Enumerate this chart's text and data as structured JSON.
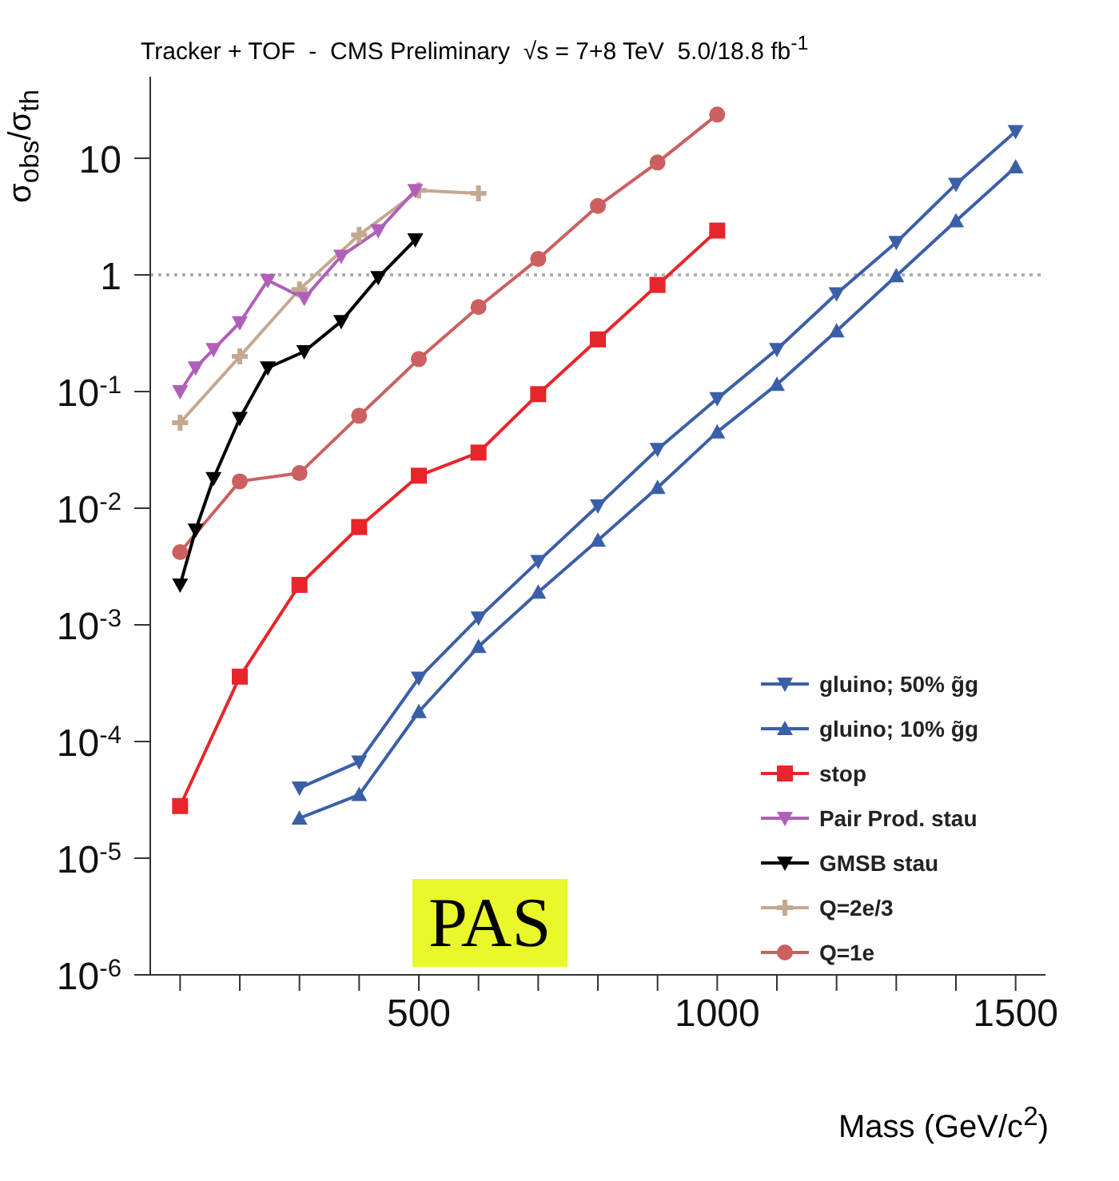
{
  "chart_data": {
    "type": "line",
    "title": "Tracker + TOF  -  CMS Preliminary  √s = 7+8 TeV  5.0/18.8 fb$^{-1}$",
    "xlabel": "Mass (GeV/c$^{2}$)",
    "ylabel": "σ$_{obs}$/σ$_{th}$",
    "annotations": [
      "PAS"
    ],
    "log": "y",
    "xlim": [
      50,
      1550
    ],
    "xticks": [
      {
        "value": 100,
        "label": null
      },
      {
        "value": 200,
        "label": null
      },
      {
        "value": 300,
        "label": null
      },
      {
        "value": 400,
        "label": null
      },
      500,
      {
        "value": 600,
        "label": null
      },
      {
        "value": 700,
        "label": null
      },
      {
        "value": 800,
        "label": null
      },
      {
        "value": 900,
        "label": null
      },
      1000,
      {
        "value": 1100,
        "label": null
      },
      {
        "value": 1200,
        "label": null
      },
      {
        "value": 1300,
        "label": null
      },
      {
        "value": 1400,
        "label": null
      },
      1500
    ],
    "ylim": [
      1e-06,
      50
    ],
    "yticks": [
      {
        "value": 1e-06,
        "label": "10$^{-6}$"
      },
      {
        "value": 1e-05,
        "label": "10$^{-5}$"
      },
      {
        "value": 0.0001,
        "label": "10$^{-4}$"
      },
      {
        "value": 0.001,
        "label": "10$^{-3}$"
      },
      {
        "value": 0.01,
        "label": "10$^{-2}$"
      },
      {
        "value": 0.1,
        "label": "10$^{-1}$"
      },
      1,
      10
    ],
    "legend": "bottom right",
    "line_style": "solid",
    "ref_lines": [
      {
        "axis": "y",
        "value": 1,
        "color": "#b0b0b0",
        "line_style": "dotted"
      }
    ],
    "series": [
      {
        "name": "gluino; 50% g̃g",
        "color": "#3a5fa8",
        "marker": "triangle-down",
        "x": [
          300,
          400,
          500,
          600,
          700,
          800,
          900,
          1000,
          1100,
          1200,
          1300,
          1400,
          1500
        ],
        "values": [
          4e-05,
          6.7e-05,
          0.00035,
          0.00115,
          0.0035,
          0.0105,
          0.032,
          0.087,
          0.23,
          0.69,
          1.9,
          6,
          17
        ]
      },
      {
        "name": "gluino; 10% g̃g",
        "color": "#3a5fa8",
        "marker": "triangle",
        "x": [
          300,
          400,
          500,
          600,
          700,
          800,
          900,
          1000,
          1100,
          1200,
          1300,
          1400,
          1500
        ],
        "values": [
          2.2e-05,
          3.5e-05,
          0.00018,
          0.00065,
          0.0019,
          0.0053,
          0.015,
          0.045,
          0.115,
          0.33,
          0.98,
          2.9,
          8.4
        ]
      },
      {
        "name": "stop",
        "color": "#e8252a",
        "marker": "square",
        "x": [
          100,
          200,
          300,
          400,
          500,
          600,
          700,
          800,
          900,
          1000
        ],
        "values": [
          2.8e-05,
          0.00036,
          0.0022,
          0.0069,
          0.019,
          0.03,
          0.095,
          0.28,
          0.82,
          2.4
        ]
      },
      {
        "name": "Pair Prod. stau",
        "color": "#b05fb8",
        "marker": "triangle-down",
        "x": [
          100,
          126,
          156,
          200,
          247,
          308,
          370,
          432,
          494
        ],
        "values": [
          0.1,
          0.16,
          0.23,
          0.39,
          0.9,
          0.63,
          1.45,
          2.4,
          5.3
        ]
      },
      {
        "name": "GMSB stau",
        "color": "#000000",
        "marker": "triangle-down",
        "x": [
          100,
          126,
          156,
          200,
          247,
          308,
          370,
          432,
          494
        ],
        "values": [
          0.0022,
          0.0065,
          0.018,
          0.059,
          0.16,
          0.22,
          0.4,
          0.95,
          2
        ]
      },
      {
        "name": "Q=2e/3",
        "color": "#c4a890",
        "marker": "cross",
        "x": [
          100,
          200,
          300,
          400,
          500,
          600
        ],
        "values": [
          0.054,
          0.2,
          0.75,
          2.2,
          5.3,
          5
        ]
      },
      {
        "name": "Q=1e",
        "color": "#cc5f5f",
        "marker": "circle",
        "x": [
          100,
          200,
          300,
          400,
          500,
          600,
          700,
          800,
          900,
          1000
        ],
        "values": [
          0.0042,
          0.017,
          0.02,
          0.062,
          0.19,
          0.53,
          1.37,
          3.9,
          9.2,
          23.7
        ]
      }
    ]
  }
}
